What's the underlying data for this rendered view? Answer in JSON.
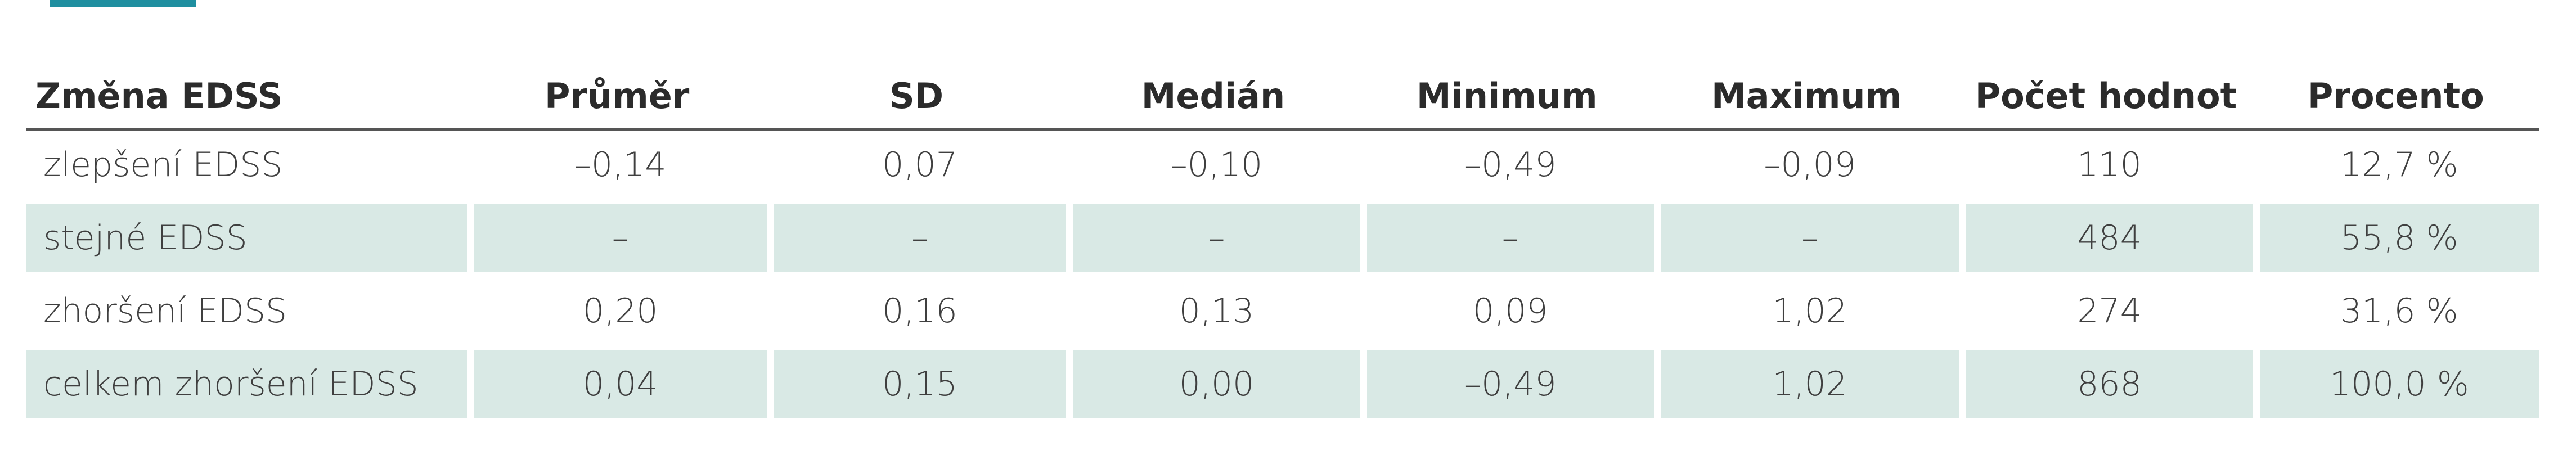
{
  "table": {
    "headers": [
      "Změna EDSS",
      "Průměr",
      "SD",
      "Medián",
      "Minimum",
      "Maximum",
      "Počet hodnot",
      "Procento"
    ],
    "rows": [
      [
        "zlepšení EDSS",
        "–0,14",
        "0,07",
        "–0,10",
        "–0,49",
        "–0,09",
        "110",
        "12,7 %"
      ],
      [
        "stejné EDSS",
        "–",
        "–",
        "–",
        "–",
        "–",
        "484",
        "55,8 %"
      ],
      [
        "zhoršení EDSS",
        "0,20",
        "0,16",
        "0,13",
        "0,09",
        "1,02",
        "274",
        "31,6 %"
      ],
      [
        "celkem zhoršení EDSS",
        "0,04",
        "0,15",
        "0,00",
        "–0,49",
        "1,02",
        "868",
        "100,0 %"
      ]
    ]
  },
  "colors": {
    "accent": "#1f8fa0",
    "row_shade": "#d9e9e5",
    "rule": "#555555"
  }
}
